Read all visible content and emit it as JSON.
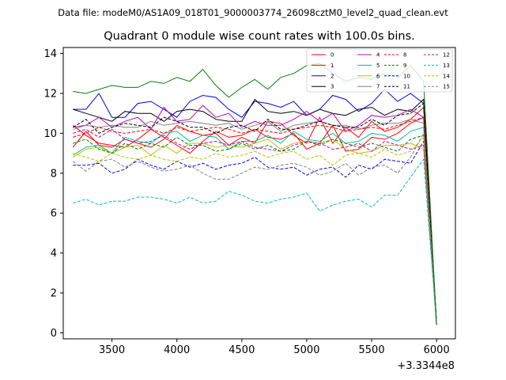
{
  "suptitle": "Data file: modeM0/AS1A09_018T01_9000003774_26098cztM0_level2_quad_clean.evt",
  "chart_data": {
    "type": "line",
    "title": "Quadrant 0 module wise count rates with 100.0s bins.",
    "xlabel": "",
    "ylabel": "",
    "x_offset_label": "+3.3344e8",
    "xlim": [
      3125,
      6145
    ],
    "ylim": [
      -0.3,
      14.3
    ],
    "xticks": [
      3500,
      4000,
      4500,
      5000,
      5500,
      6000
    ],
    "yticks": [
      0,
      2,
      4,
      6,
      8,
      10,
      12,
      14
    ],
    "grid": false,
    "legend_position": "top-right",
    "x": [
      3200,
      3300,
      3400,
      3500,
      3600,
      3700,
      3800,
      3900,
      4000,
      4100,
      4200,
      4300,
      4400,
      4500,
      4600,
      4700,
      4800,
      4900,
      5000,
      5100,
      5200,
      5300,
      5400,
      5500,
      5600,
      5700,
      5800,
      5900,
      6000
    ],
    "series": [
      {
        "name": "0",
        "color": "#ff0000",
        "dash": "solid",
        "values": [
          9.3,
          10.1,
          9.4,
          9.3,
          9.7,
          9.5,
          9.3,
          9.7,
          10.4,
          10.1,
          9.9,
          10.0,
          9.4,
          9.8,
          9.5,
          10.6,
          10.5,
          9.9,
          9.5,
          10.8,
          9.5,
          10.3,
          9.8,
          10.6,
          10.1,
          10.3,
          10.7,
          11.3,
          0.4
        ]
      },
      {
        "name": "1",
        "color": "#ff0000",
        "dash": "solid",
        "values": [
          10.4,
          9.9,
          9.5,
          9.4,
          9.3,
          9.7,
          10.2,
          9.8,
          9.4,
          9.0,
          9.6,
          10.1,
          9.8,
          9.9,
          10.2,
          9.8,
          9.7,
          10.0,
          9.2,
          9.5,
          10.4,
          9.1,
          9.2,
          9.8,
          9.7,
          10.0,
          10.5,
          10.8,
          0.4
        ]
      },
      {
        "name": "2",
        "color": "#0000ff",
        "dash": "solid",
        "values": [
          11.2,
          11.2,
          12.0,
          10.8,
          10.8,
          11.5,
          11.6,
          11.2,
          10.8,
          11.6,
          11.9,
          11.8,
          11.2,
          10.8,
          11.6,
          11.5,
          11.3,
          11.6,
          10.9,
          11.2,
          11.9,
          11.7,
          11.1,
          11.5,
          12.2,
          11.6,
          12.0,
          11.5,
          0.4
        ]
      },
      {
        "name": "3",
        "color": "#000000",
        "dash": "solid",
        "values": [
          11.2,
          11.0,
          10.8,
          10.6,
          11.1,
          11.0,
          11.0,
          10.6,
          11.1,
          11.2,
          11.1,
          10.7,
          10.6,
          10.6,
          11.7,
          11.1,
          11.0,
          11.1,
          10.9,
          11.2,
          11.0,
          10.9,
          11.2,
          11.3,
          10.9,
          11.2,
          11.1,
          11.7,
          0.4
        ]
      },
      {
        "name": "4",
        "color": "#bf00bf",
        "dash": "solid",
        "values": [
          10.3,
          10.4,
          10.8,
          10.3,
          10.6,
          10.8,
          10.2,
          11.3,
          10.6,
          10.7,
          11.4,
          10.8,
          11.0,
          10.3,
          10.6,
          10.4,
          10.4,
          10.7,
          11.1,
          10.6,
          11.0,
          10.1,
          10.4,
          10.9,
          10.8,
          10.9,
          11.2,
          10.8,
          0.4
        ]
      },
      {
        "name": "5",
        "color": "#00bf9f",
        "dash": "solid",
        "values": [
          8.9,
          9.3,
          9.4,
          9.0,
          9.8,
          9.6,
          9.5,
          10.0,
          10.1,
          9.6,
          9.9,
          9.8,
          9.2,
          9.6,
          9.6,
          9.9,
          9.5,
          10.1,
          9.7,
          9.6,
          10.0,
          9.5,
          9.6,
          10.0,
          9.9,
          9.6,
          10.1,
          10.3,
          0.4
        ]
      },
      {
        "name": "6",
        "color": "#bfbf00",
        "dash": "solid",
        "values": [
          8.8,
          9.2,
          9.3,
          9.0,
          9.3,
          9.4,
          8.9,
          9.4,
          9.0,
          9.5,
          9.5,
          9.3,
          9.4,
          9.3,
          9.5,
          9.7,
          9.2,
          9.5,
          9.6,
          9.5,
          9.7,
          9.2,
          9.0,
          9.1,
          9.4,
          9.4,
          9.5,
          9.2,
          0.4
        ]
      },
      {
        "name": "7",
        "color": "#808080",
        "dash": "solid",
        "values": [
          10.2,
          10.4,
          10.3,
          10.4,
          10.3,
          10.3,
          10.6,
          10.4,
          10.5,
          10.6,
          10.5,
          10.4,
          10.5,
          10.2,
          10.4,
          10.6,
          10.1,
          10.4,
          10.5,
          10.6,
          10.4,
          10.4,
          10.2,
          10.4,
          10.5,
          10.5,
          10.7,
          10.5,
          0.4
        ]
      },
      {
        "name": "8",
        "color": "#ff0000",
        "dash": "dashed",
        "values": [
          9.8,
          10.0,
          10.3,
          10.1,
          10.0,
          10.1,
          10.2,
          10.0,
          10.3,
          10.1,
          10.2,
          10.3,
          10.2,
          10.0,
          10.2,
          10.1,
          10.0,
          10.2,
          10.3,
          10.4,
          10.3,
          10.1,
          10.2,
          10.3,
          10.2,
          10.4,
          10.6,
          10.8,
          0.4
        ]
      },
      {
        "name": "9",
        "color": "#008000",
        "dash": "dashed",
        "values": [
          9.5,
          9.7,
          9.2,
          9.0,
          9.5,
          9.2,
          9.5,
          9.3,
          9.8,
          9.4,
          9.4,
          9.1,
          9.2,
          9.5,
          9.2,
          9.4,
          9.1,
          9.2,
          9.6,
          9.4,
          9.7,
          9.5,
          9.3,
          9.5,
          9.3,
          9.1,
          9.7,
          9.9,
          0.4
        ]
      },
      {
        "name": "10",
        "color": "#0000ff",
        "dash": "dashed",
        "values": [
          8.4,
          8.4,
          8.5,
          8.0,
          8.2,
          8.7,
          8.4,
          8.2,
          8.6,
          8.3,
          8.5,
          8.2,
          8.4,
          8.5,
          8.8,
          8.3,
          8.2,
          8.3,
          7.9,
          8.2,
          8.3,
          7.8,
          8.4,
          8.2,
          8.7,
          8.6,
          8.5,
          9.6,
          0.4
        ]
      },
      {
        "name": "11",
        "color": "#000000",
        "dash": "dashed",
        "values": [
          10.3,
          10.7,
          10.0,
          10.3,
          10.5,
          10.4,
          10.3,
          10.8,
          10.6,
          10.3,
          10.3,
          10.0,
          10.3,
          10.4,
          10.1,
          10.7,
          10.2,
          10.2,
          10.4,
          10.6,
          10.4,
          10.3,
          10.3,
          10.7,
          10.4,
          10.9,
          11.0,
          11.5,
          0.4
        ]
      },
      {
        "name": "12",
        "color": "#bf00bf",
        "dash": "dashed",
        "values": [
          10.0,
          10.2,
          9.8,
          10.2,
          9.7,
          9.5,
          9.6,
          9.9,
          9.5,
          9.2,
          9.5,
          9.6,
          9.4,
          9.6,
          9.3,
          9.2,
          9.1,
          9.4,
          9.6,
          9.5,
          9.2,
          9.3,
          9.5,
          9.1,
          9.6,
          9.4,
          9.2,
          9.4,
          0.4
        ]
      },
      {
        "name": "13",
        "color": "#00bfbf",
        "dash": "dashed",
        "values": [
          6.5,
          6.7,
          6.4,
          6.6,
          6.6,
          6.8,
          6.8,
          6.7,
          6.5,
          6.8,
          6.5,
          6.6,
          7.1,
          6.9,
          6.6,
          6.5,
          6.7,
          6.8,
          7.0,
          6.1,
          6.4,
          6.6,
          6.7,
          6.3,
          6.9,
          6.9,
          7.8,
          8.7,
          0.4
        ]
      },
      {
        "name": "14",
        "color": "#bfbf00",
        "dash": "dashed",
        "values": [
          9.0,
          8.8,
          8.6,
          9.0,
          8.8,
          8.7,
          8.9,
          8.7,
          8.6,
          8.8,
          8.7,
          9.0,
          8.8,
          8.9,
          9.1,
          8.8,
          9.0,
          9.1,
          8.7,
          8.9,
          8.4,
          8.9,
          9.0,
          8.8,
          9.2,
          8.9,
          9.1,
          9.8,
          0.4
        ]
      },
      {
        "name": "15",
        "color": "#808080",
        "dash": "dashed",
        "values": [
          8.6,
          8.1,
          8.6,
          8.7,
          8.3,
          8.6,
          8.3,
          8.1,
          8.2,
          8.4,
          8.0,
          7.7,
          7.7,
          8.0,
          8.3,
          8.2,
          8.4,
          8.5,
          8.3,
          7.9,
          8.1,
          8.5,
          7.9,
          8.3,
          8.4,
          8.0,
          8.8,
          10.0,
          0.4
        ]
      },
      {
        "name": "",
        "color": "#008000",
        "dash": "solid",
        "values": [
          12.1,
          12.0,
          12.2,
          12.4,
          12.3,
          12.3,
          12.6,
          12.5,
          12.8,
          12.6,
          13.2,
          12.4,
          11.8,
          12.3,
          12.7,
          12.2,
          12.8,
          13.0,
          13.4,
          13.5,
          13.0,
          12.6,
          12.8,
          12.7,
          13.0,
          12.8,
          13.4,
          12.6,
          0.4
        ]
      }
    ]
  }
}
